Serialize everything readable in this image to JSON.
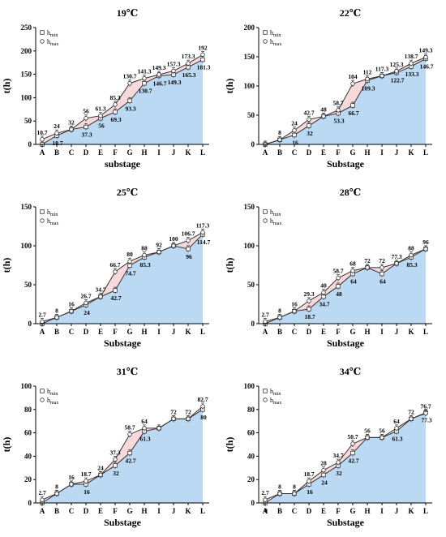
{
  "chart_data": [
    {
      "type": "area",
      "title": "19℃",
      "xlabel": "substage",
      "ylabel": "t(h)",
      "ylim": [
        0,
        250
      ],
      "yticks": [
        0,
        50,
        100,
        150,
        200,
        250
      ],
      "categories": [
        "A",
        "B",
        "C",
        "D",
        "E",
        "F",
        "G",
        "H",
        "I",
        "J",
        "K",
        "L"
      ],
      "legend": [
        "hmin",
        "hmax"
      ],
      "series": [
        {
          "values": [
            0,
            18.7,
            32,
            37.3,
            56,
            69.3,
            93.3,
            130.7,
            146.7,
            149.3,
            165.3,
            181.3
          ]
        },
        {
          "values": [
            10.7,
            24,
            32,
            56,
            61.3,
            85.3,
            130.7,
            141.3,
            149.3,
            157.3,
            173.3,
            192
          ]
        }
      ],
      "labels_low": [
        "",
        "18.7",
        "",
        "37.3",
        "56",
        "69.3",
        "93.3",
        "130.7",
        "146.7",
        "149.3",
        "165.3",
        "181.3"
      ],
      "labels_high": [
        "10.7",
        "24",
        "32",
        "56",
        "61.3",
        "85.3",
        "130.7",
        "141.3",
        "149.3",
        "157.3",
        "173.3",
        "192"
      ]
    },
    {
      "type": "area",
      "title": "22℃",
      "xlabel": "Substage",
      "ylabel": "t(h)",
      "ylim": [
        0,
        200
      ],
      "yticks": [
        0,
        50,
        100,
        150,
        200
      ],
      "categories": [
        "A",
        "B",
        "C",
        "D",
        "E",
        "F",
        "G",
        "H",
        "I",
        "J",
        "K",
        "L"
      ],
      "legend": [
        "hmin",
        "hmax"
      ],
      "series": [
        {
          "values": [
            0,
            8,
            16,
            32,
            48,
            53.3,
            66.7,
            109.3,
            117.3,
            122.7,
            133.3,
            146.7
          ]
        },
        {
          "values": [
            0,
            8,
            24,
            42.7,
            48,
            58.7,
            104,
            112,
            117.3,
            125.3,
            138.7,
            149.3
          ]
        }
      ],
      "labels_low": [
        "",
        "",
        "16",
        "32",
        "",
        "53.3",
        "66.7",
        "109.3",
        "",
        "122.7",
        "133.3",
        "146.7"
      ],
      "labels_high": [
        "",
        "8",
        "24",
        "42.7",
        "48",
        "58.7",
        "104",
        "112",
        "117.3",
        "125.3",
        "138.7",
        "149.3"
      ]
    },
    {
      "type": "area",
      "title": "25℃",
      "xlabel": "Substage",
      "ylabel": "t(h)",
      "ylim": [
        0,
        150
      ],
      "yticks": [
        0,
        50,
        100,
        150
      ],
      "categories": [
        "A",
        "B",
        "C",
        "D",
        "E",
        "F",
        "G",
        "H",
        "I",
        "J",
        "K",
        "L"
      ],
      "legend": [
        "hmin",
        "hmax"
      ],
      "series": [
        {
          "values": [
            0,
            8,
            16,
            24,
            34.7,
            42.7,
            74.7,
            85.3,
            92,
            100,
            96,
            114.7
          ]
        },
        {
          "values": [
            2.7,
            8,
            16,
            26.7,
            34.7,
            66.7,
            80,
            88,
            92,
            100,
            106.7,
            117.3
          ]
        }
      ],
      "labels_low": [
        "",
        "",
        "",
        "24",
        "",
        "42.7",
        "74.7",
        "85.3",
        "",
        "",
        "96",
        "114.7"
      ],
      "labels_high": [
        "2.7",
        "8",
        "16",
        "26.7",
        "34.7",
        "66.7",
        "80",
        "88",
        "92",
        "100",
        "106.7",
        "117.3"
      ]
    },
    {
      "type": "area",
      "title": "28℃",
      "xlabel": "Substage",
      "ylabel": "t(h)",
      "ylim": [
        0,
        150
      ],
      "yticks": [
        0,
        50,
        100,
        150
      ],
      "categories": [
        "A",
        "B",
        "C",
        "D",
        "E",
        "F",
        "G",
        "H",
        "I",
        "J",
        "K",
        "L"
      ],
      "legend": [
        "hmin",
        "hmax"
      ],
      "series": [
        {
          "values": [
            0,
            8,
            16,
            18.7,
            34.7,
            48,
            64,
            72,
            64,
            77.3,
            85.3,
            96
          ]
        },
        {
          "values": [
            2.7,
            8,
            16,
            29.3,
            40,
            58.7,
            68,
            72,
            72,
            77.3,
            88,
            96
          ]
        }
      ],
      "labels_low": [
        "",
        "",
        "",
        "18.7",
        "34.7",
        "48",
        "64",
        "",
        "64",
        "",
        "85.3",
        ""
      ],
      "labels_high": [
        "2.7",
        "8",
        "16",
        "29.3",
        "40",
        "58.7",
        "68",
        "72",
        "72",
        "77.3",
        "88",
        "96"
      ]
    },
    {
      "type": "area",
      "title": "31℃",
      "xlabel": "Substage",
      "ylabel": "t(h)",
      "ylim": [
        0,
        100
      ],
      "yticks": [
        0,
        20,
        40,
        60,
        80,
        100
      ],
      "categories": [
        "A",
        "B",
        "C",
        "D",
        "E",
        "F",
        "G",
        "H",
        "I",
        "J",
        "K",
        "L"
      ],
      "legend": [
        "hmin",
        "hmax"
      ],
      "series": [
        {
          "values": [
            0,
            8,
            16,
            16,
            24,
            32,
            42.7,
            61.3,
            64,
            72,
            72,
            80
          ]
        },
        {
          "values": [
            2.7,
            8,
            16,
            18.7,
            24,
            37.3,
            58.7,
            64,
            64,
            72,
            72,
            82.7
          ]
        }
      ],
      "labels_low": [
        "",
        "",
        "",
        "16",
        "",
        "32",
        "42.7",
        "61.3",
        "",
        "",
        "",
        "80"
      ],
      "labels_high": [
        "2.7",
        "8",
        "16",
        "18.7",
        "24",
        "37.3",
        "58.7",
        "64",
        "",
        "72",
        "72",
        "82.7"
      ]
    },
    {
      "type": "area",
      "title": "34℃",
      "xlabel": "Substage",
      "ylabel": "t(h)",
      "ylim": [
        0,
        100
      ],
      "yticks": [
        0,
        20,
        40,
        60,
        80,
        100
      ],
      "categories": [
        "A",
        "B",
        "C",
        "D",
        "E",
        "F",
        "G",
        "H",
        "I",
        "J",
        "K",
        "L"
      ],
      "legend": [
        "hmin",
        "hmax"
      ],
      "series": [
        {
          "values": [
            0,
            8,
            8,
            16,
            24,
            32,
            42.7,
            56,
            56,
            61.3,
            72,
            77.3
          ]
        },
        {
          "values": [
            2.7,
            8,
            8,
            18.7,
            28,
            34.7,
            50.7,
            56,
            56,
            64,
            72,
            76.7
          ]
        }
      ],
      "labels_low": [
        "0",
        "",
        "",
        "16",
        "24",
        "32",
        "42.7",
        "",
        "",
        "61.3",
        "",
        "77.3"
      ],
      "labels_high": [
        "2.7",
        "8",
        "8",
        "18.7",
        "28",
        "34.7",
        "50.7",
        "56",
        "56",
        "64",
        "72",
        "76.7"
      ]
    }
  ],
  "colors": {
    "fill_low": "#bcd9f4",
    "fill_gap": "#f7d9dc",
    "line": "#333333",
    "axis": "#000000"
  }
}
